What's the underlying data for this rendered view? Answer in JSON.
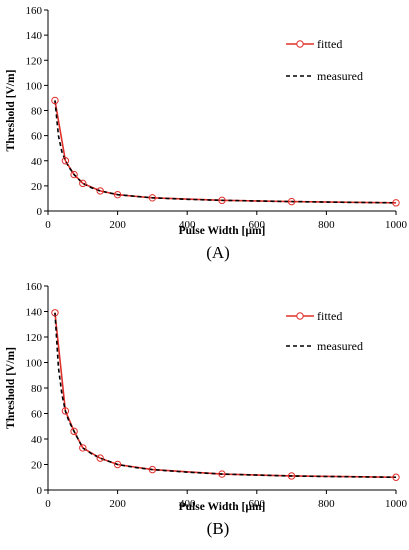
{
  "chart_data": [
    {
      "type": "line",
      "panel_label": "(A)",
      "xlabel": "Pulse Width [µm]",
      "ylabel": "Threshold [V/m]",
      "xlim": [
        0,
        1000
      ],
      "ylim": [
        0,
        160
      ],
      "xticks": [
        0,
        200,
        400,
        600,
        800,
        1000
      ],
      "yticks": [
        0,
        20,
        40,
        60,
        80,
        100,
        120,
        140,
        160
      ],
      "grid": false,
      "legend_position": "top-right",
      "series": [
        {
          "name": "fitted",
          "style": "solid-with-circle-markers",
          "color": "#e0302c",
          "x": [
            20,
            50,
            75,
            100,
            150,
            200,
            300,
            500,
            700,
            1000
          ],
          "y": [
            88,
            40,
            29,
            22,
            16,
            13,
            10.5,
            8.5,
            7.5,
            6.5
          ]
        },
        {
          "name": "measured",
          "style": "dashed",
          "color": "#000000",
          "x": [
            20,
            30,
            40,
            50,
            60,
            75,
            100,
            125,
            150,
            200,
            250,
            300,
            400,
            500,
            600,
            700,
            800,
            900,
            1000
          ],
          "y": [
            88,
            60,
            47,
            40,
            35,
            29,
            22,
            18.5,
            16,
            13,
            11.7,
            10.5,
            9.3,
            8.5,
            8.0,
            7.5,
            7.1,
            6.8,
            6.5
          ]
        }
      ]
    },
    {
      "type": "line",
      "panel_label": "(B)",
      "xlabel": "Pulse Width [µm]",
      "ylabel": "Threshold [V/m]",
      "xlim": [
        0,
        1000
      ],
      "ylim": [
        0,
        160
      ],
      "xticks": [
        0,
        200,
        400,
        600,
        800,
        1000
      ],
      "yticks": [
        0,
        20,
        40,
        60,
        80,
        100,
        120,
        140,
        160
      ],
      "grid": false,
      "legend_position": "top-right",
      "series": [
        {
          "name": "fitted",
          "style": "solid-with-circle-markers",
          "color": "#e0302c",
          "x": [
            20,
            50,
            75,
            100,
            150,
            200,
            300,
            500,
            700,
            1000
          ],
          "y": [
            139,
            62,
            46,
            33,
            25,
            20,
            16,
            12.5,
            11,
            10
          ]
        },
        {
          "name": "measured",
          "style": "dashed",
          "color": "#000000",
          "x": [
            20,
            30,
            40,
            50,
            60,
            75,
            100,
            125,
            150,
            200,
            250,
            300,
            400,
            500,
            600,
            700,
            800,
            900,
            1000
          ],
          "y": [
            139,
            96,
            75,
            62,
            54,
            46,
            33,
            28.5,
            25,
            20,
            17.7,
            16,
            14,
            12.5,
            11.7,
            11,
            10.6,
            10.3,
            10
          ]
        }
      ]
    }
  ]
}
